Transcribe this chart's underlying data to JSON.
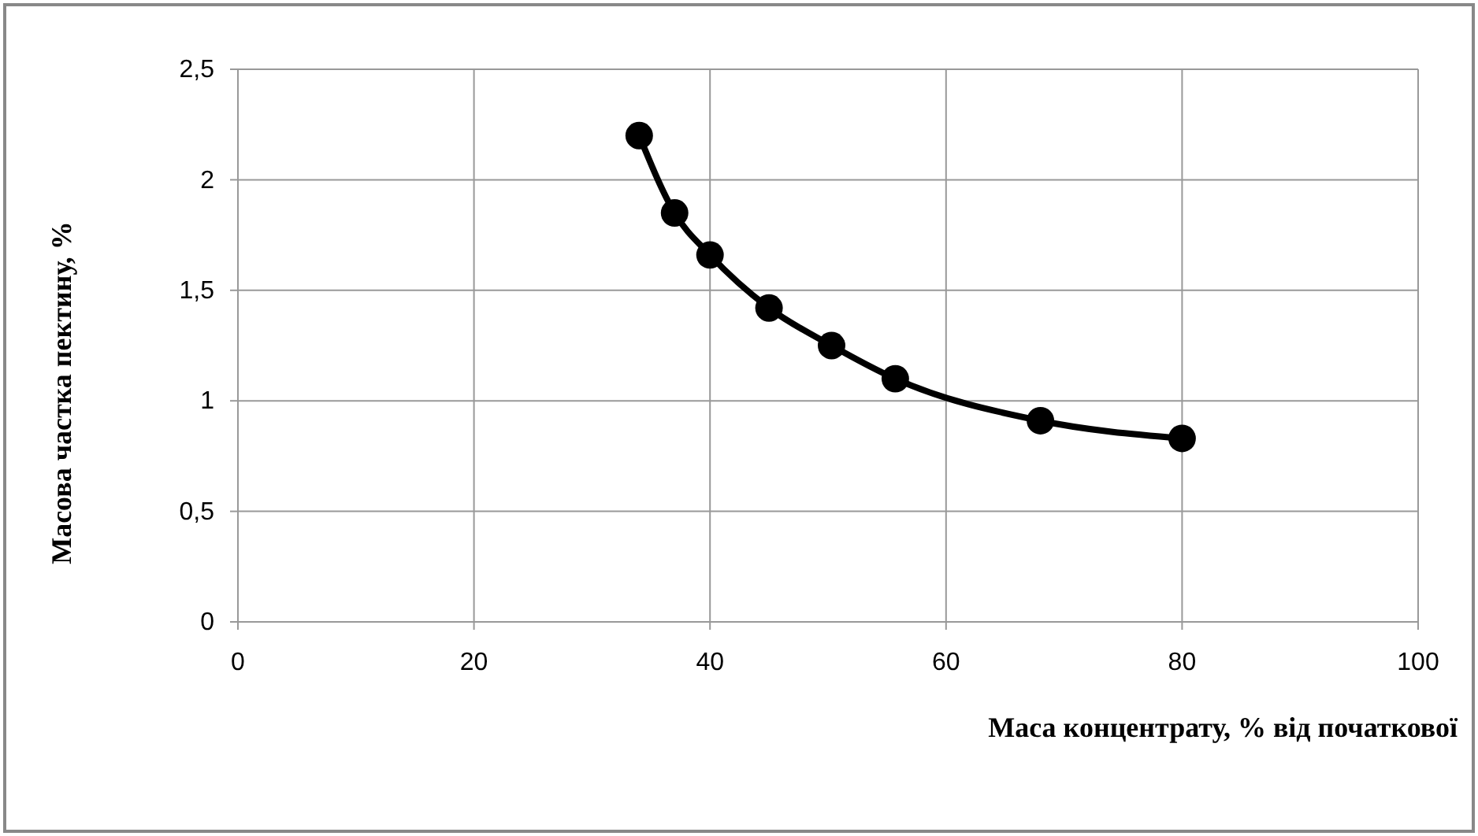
{
  "chart_data": {
    "type": "line",
    "xlabel": "Маса концентрату, % від початкової",
    "ylabel": "Масова частка пектину, %",
    "x": [
      34,
      37,
      40,
      45,
      50.3,
      55.7,
      68,
      80
    ],
    "series": [
      {
        "color": "#000000",
        "values": [
          2.2,
          1.85,
          1.66,
          1.42,
          1.25,
          1.1,
          0.91,
          0.83
        ]
      }
    ],
    "xlim": [
      0,
      100
    ],
    "xticks": [
      0,
      20,
      40,
      60,
      80,
      100
    ],
    "ylim": [
      0,
      2.5
    ],
    "yticks": [
      {
        "value": 0,
        "label": "0"
      },
      {
        "value": 0.5,
        "label": "0,5"
      },
      {
        "value": 1,
        "label": "1"
      },
      {
        "value": 1.5,
        "label": "1,5"
      },
      {
        "value": 2,
        "label": "2"
      },
      {
        "value": 2.5,
        "label": "2,5"
      }
    ],
    "grid": true,
    "marker": "circle",
    "line_style": "solid"
  }
}
